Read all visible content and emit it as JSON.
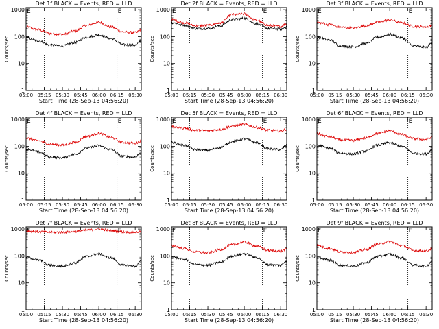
{
  "figure": {
    "xlabel": "Start Time (28-Sep-13 04:56:20)",
    "ylabel": "Counts/sec",
    "corner_glyph": "E",
    "x_ticks": [
      "05:00",
      "05:15",
      "05:30",
      "05:45",
      "06:00",
      "06:15",
      "06:30"
    ]
  },
  "chart_data": [
    {
      "type": "line",
      "title": "Det 1f BLACK = Events, RED = LLD",
      "xlabel": "Start Time (28-Sep-13 04:56:20)",
      "ylabel": "Counts/sec",
      "x_ticks": [
        "05:00",
        "05:15",
        "05:30",
        "05:45",
        "06:00",
        "06:15",
        "06:30"
      ],
      "y_ticks": [
        "1",
        "10",
        "100",
        "1000"
      ],
      "ylim": [
        1,
        1200
      ],
      "yscale": "log",
      "xlim": [
        "05:00",
        "06:35"
      ],
      "vlines": [
        "05:15",
        "06:15"
      ],
      "x": [
        "05:00",
        "05:10",
        "05:20",
        "05:30",
        "05:40",
        "05:50",
        "06:00",
        "06:10",
        "06:20",
        "06:30",
        "06:35"
      ],
      "series": [
        {
          "name": "LLD",
          "color": "#dd0000",
          "values": [
            230,
            180,
            130,
            120,
            160,
            260,
            340,
            230,
            150,
            140,
            180
          ]
        },
        {
          "name": "Events",
          "color": "#000000",
          "values": [
            90,
            70,
            48,
            45,
            60,
            95,
            115,
            85,
            50,
            48,
            70
          ]
        }
      ]
    },
    {
      "type": "line",
      "title": "Det 2f BLACK = Events, RED = LLD",
      "xlabel": "Start Time (28-Sep-13 04:56:20)",
      "ylabel": "Counts/sec",
      "x_ticks": [
        "05:00",
        "05:15",
        "05:30",
        "05:45",
        "06:00",
        "06:15",
        "06:30"
      ],
      "y_ticks": [
        "1",
        "10",
        "100",
        "1000"
      ],
      "ylim": [
        1,
        1200
      ],
      "yscale": "log",
      "xlim": [
        "05:00",
        "06:35"
      ],
      "vlines": [
        "05:15",
        "06:15"
      ],
      "x": [
        "05:00",
        "05:10",
        "05:20",
        "05:30",
        "05:40",
        "05:50",
        "06:00",
        "06:10",
        "06:20",
        "06:30",
        "06:35"
      ],
      "series": [
        {
          "name": "LLD",
          "color": "#dd0000",
          "values": [
            430,
            330,
            250,
            260,
            320,
            650,
            700,
            400,
            260,
            240,
            300
          ]
        },
        {
          "name": "Events",
          "color": "#000000",
          "values": [
            330,
            270,
            200,
            200,
            250,
            430,
            480,
            300,
            200,
            190,
            230
          ]
        }
      ]
    },
    {
      "type": "line",
      "title": "Det 3f BLACK = Events, RED = LLD",
      "xlabel": "Start Time (28-Sep-13 04:56:20)",
      "ylabel": "Counts/sec",
      "x_ticks": [
        "05:00",
        "05:15",
        "05:30",
        "05:45",
        "06:00",
        "06:15",
        "06:30"
      ],
      "y_ticks": [
        "1",
        "10",
        "100",
        "1000"
      ],
      "ylim": [
        1,
        1200
      ],
      "yscale": "log",
      "xlim": [
        "05:00",
        "06:35"
      ],
      "vlines": [
        "05:15",
        "06:15"
      ],
      "x": [
        "05:00",
        "05:10",
        "05:20",
        "05:30",
        "05:40",
        "05:50",
        "06:00",
        "06:10",
        "06:20",
        "06:30",
        "06:35"
      ],
      "series": [
        {
          "name": "LLD",
          "color": "#dd0000",
          "values": [
            340,
            280,
            220,
            210,
            250,
            340,
            420,
            320,
            240,
            230,
            260
          ]
        },
        {
          "name": "Events",
          "color": "#000000",
          "values": [
            95,
            75,
            45,
            42,
            55,
            95,
            120,
            90,
            45,
            40,
            60
          ]
        }
      ]
    },
    {
      "type": "line",
      "title": "Det 4f BLACK = Events, RED = LLD",
      "xlabel": "Start Time (28-Sep-13 04:56:20)",
      "ylabel": "Counts/sec",
      "x_ticks": [
        "05:00",
        "05:15",
        "05:30",
        "05:45",
        "06:00",
        "06:15",
        "06:30"
      ],
      "y_ticks": [
        "1",
        "10",
        "100",
        "1000"
      ],
      "ylim": [
        1,
        1200
      ],
      "yscale": "log",
      "xlim": [
        "05:00",
        "06:35"
      ],
      "vlines": [
        "05:15",
        "06:15"
      ],
      "x": [
        "05:00",
        "05:10",
        "05:20",
        "05:30",
        "05:40",
        "05:50",
        "06:00",
        "06:10",
        "06:20",
        "06:30",
        "06:35"
      ],
      "series": [
        {
          "name": "LLD",
          "color": "#dd0000",
          "values": [
            200,
            160,
            120,
            110,
            140,
            230,
            300,
            210,
            140,
            130,
            160
          ]
        },
        {
          "name": "Events",
          "color": "#000000",
          "values": [
            80,
            62,
            40,
            38,
            50,
            85,
            105,
            75,
            42,
            40,
            60
          ]
        }
      ]
    },
    {
      "type": "line",
      "title": "Det 5f BLACK = Events, RED = LLD",
      "xlabel": "Start Time (28-Sep-13 04:56:20)",
      "ylabel": "Counts/sec",
      "x_ticks": [
        "05:00",
        "05:15",
        "05:30",
        "05:45",
        "06:00",
        "06:15",
        "06:30"
      ],
      "y_ticks": [
        "1",
        "10",
        "100",
        "1000"
      ],
      "ylim": [
        1,
        1200
      ],
      "yscale": "log",
      "xlim": [
        "05:00",
        "06:35"
      ],
      "vlines": [
        "05:15",
        "06:15"
      ],
      "x": [
        "05:00",
        "05:10",
        "05:20",
        "05:30",
        "05:40",
        "05:50",
        "06:00",
        "06:10",
        "06:20",
        "06:30",
        "06:35"
      ],
      "series": [
        {
          "name": "LLD",
          "color": "#dd0000",
          "values": [
            520,
            470,
            390,
            380,
            420,
            560,
            640,
            500,
            390,
            370,
            430
          ]
        },
        {
          "name": "Events",
          "color": "#000000",
          "values": [
            140,
            110,
            75,
            70,
            90,
            150,
            190,
            140,
            80,
            75,
            110
          ]
        }
      ]
    },
    {
      "type": "line",
      "title": "Det 6f BLACK = Events, RED = LLD",
      "xlabel": "Start Time (28-Sep-13 04:56:20)",
      "ylabel": "Counts/sec",
      "x_ticks": [
        "05:00",
        "05:15",
        "05:30",
        "05:45",
        "06:00",
        "06:15",
        "06:30"
      ],
      "y_ticks": [
        "1",
        "10",
        "100",
        "1000"
      ],
      "ylim": [
        1,
        1200
      ],
      "yscale": "log",
      "xlim": [
        "05:00",
        "06:35"
      ],
      "vlines": [
        "05:15",
        "06:15"
      ],
      "x": [
        "05:00",
        "05:10",
        "05:20",
        "05:30",
        "05:40",
        "05:50",
        "06:00",
        "06:10",
        "06:20",
        "06:30",
        "06:35"
      ],
      "series": [
        {
          "name": "LLD",
          "color": "#dd0000",
          "values": [
            290,
            230,
            170,
            165,
            200,
            300,
            380,
            270,
            190,
            180,
            210
          ]
        },
        {
          "name": "Events",
          "color": "#000000",
          "values": [
            110,
            85,
            55,
            52,
            65,
            110,
            135,
            100,
            55,
            52,
            75
          ]
        }
      ]
    },
    {
      "type": "line",
      "title": "Det 7f BLACK = Events, RED = LLD",
      "xlabel": "Start Time (28-Sep-13 04:56:20)",
      "ylabel": "Counts/sec",
      "x_ticks": [
        "05:00",
        "05:15",
        "05:30",
        "05:45",
        "06:00",
        "06:15",
        "06:30"
      ],
      "y_ticks": [
        "1",
        "10",
        "100",
        "1000"
      ],
      "ylim": [
        1,
        1200
      ],
      "yscale": "log",
      "xlim": [
        "05:00",
        "06:35"
      ],
      "vlines": [
        "05:15",
        "06:15"
      ],
      "x": [
        "05:00",
        "05:10",
        "05:20",
        "05:30",
        "05:40",
        "05:50",
        "06:00",
        "06:10",
        "06:20",
        "06:30",
        "06:35"
      ],
      "series": [
        {
          "name": "LLD",
          "color": "#dd0000",
          "values": [
            850,
            800,
            750,
            760,
            800,
            900,
            1000,
            880,
            780,
            760,
            820
          ]
        },
        {
          "name": "Events",
          "color": "#000000",
          "values": [
            90,
            70,
            45,
            42,
            55,
            95,
            120,
            85,
            45,
            42,
            65
          ]
        }
      ]
    },
    {
      "type": "line",
      "title": "Det 8f BLACK = Events, RED = LLD",
      "xlabel": "Start Time (28-Sep-13 04:56:20)",
      "ylabel": "Counts/sec",
      "x_ticks": [
        "05:00",
        "05:15",
        "05:30",
        "05:45",
        "06:00",
        "06:15",
        "06:30"
      ],
      "y_ticks": [
        "1",
        "10",
        "100",
        "1000"
      ],
      "ylim": [
        1,
        1200
      ],
      "yscale": "log",
      "xlim": [
        "05:00",
        "06:35"
      ],
      "vlines": [
        "05:15",
        "06:15"
      ],
      "x": [
        "05:00",
        "05:10",
        "05:20",
        "05:30",
        "05:40",
        "05:50",
        "06:00",
        "06:10",
        "06:20",
        "06:30",
        "06:35"
      ],
      "series": [
        {
          "name": "LLD",
          "color": "#dd0000",
          "values": [
            240,
            190,
            140,
            130,
            170,
            260,
            330,
            230,
            160,
            150,
            180
          ]
        },
        {
          "name": "Events",
          "color": "#000000",
          "values": [
            95,
            75,
            48,
            45,
            58,
            98,
            120,
            88,
            48,
            45,
            68
          ]
        }
      ]
    },
    {
      "type": "line",
      "title": "Det 9f BLACK = Events, RED = LLD",
      "xlabel": "Start Time (28-Sep-13 04:56:20)",
      "ylabel": "Counts/sec",
      "x_ticks": [
        "05:00",
        "05:15",
        "05:30",
        "05:45",
        "06:00",
        "06:15",
        "06:30"
      ],
      "y_ticks": [
        "1",
        "10",
        "100",
        "1000"
      ],
      "ylim": [
        1,
        1200
      ],
      "yscale": "log",
      "xlim": [
        "05:00",
        "06:35"
      ],
      "vlines": [
        "05:15",
        "06:15"
      ],
      "x": [
        "05:00",
        "05:10",
        "05:20",
        "05:30",
        "05:40",
        "05:50",
        "06:00",
        "06:10",
        "06:20",
        "06:30",
        "06:35"
      ],
      "series": [
        {
          "name": "LLD",
          "color": "#dd0000",
          "values": [
            240,
            190,
            140,
            135,
            170,
            270,
            340,
            240,
            160,
            150,
            190
          ]
        },
        {
          "name": "Events",
          "color": "#000000",
          "values": [
            90,
            70,
            45,
            42,
            55,
            95,
            115,
            85,
            45,
            42,
            65
          ]
        }
      ]
    }
  ]
}
